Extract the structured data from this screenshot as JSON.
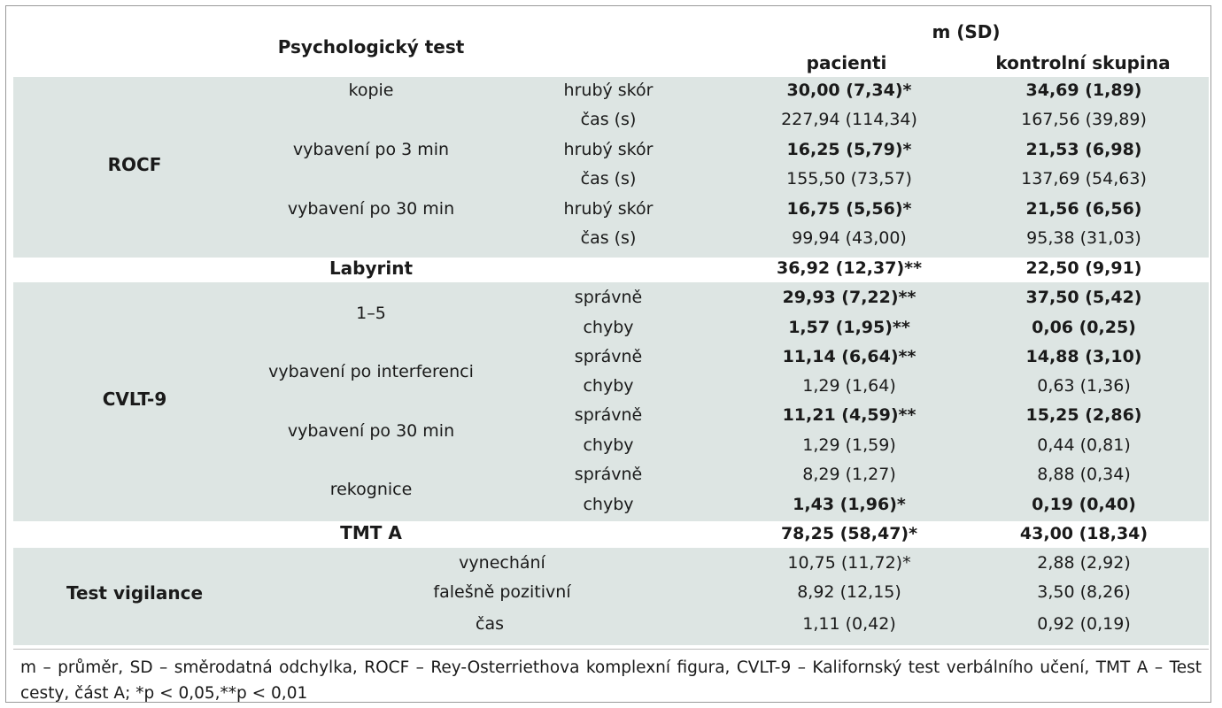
{
  "header": {
    "test": "Psychologický test",
    "stat": "m (SD)",
    "patients": "pacienti",
    "controls": "kontrolní skupina"
  },
  "groups": {
    "rocf": "ROCF",
    "labyrint": "Labyrint",
    "cvlt": "CVLT-9",
    "tmt": "TMT A",
    "vigilance": "Test vigilance"
  },
  "rows": [
    {
      "sub": "kopie",
      "measure": "hrubý skór",
      "patients": "30,00 (7,34)*",
      "controls": "34,69 (1,89)",
      "bold": true
    },
    {
      "sub": "",
      "measure": "čas (s)",
      "patients": "227,94 (114,34)",
      "controls": "167,56 (39,89)",
      "bold": false
    },
    {
      "sub": "vybavení po 3 min",
      "measure": "hrubý skór",
      "patients": "16,25 (5,79)*",
      "controls": "21,53 (6,98)",
      "bold": true
    },
    {
      "sub": "",
      "measure": "čas (s)",
      "patients": "155,50 (73,57)",
      "controls": "137,69 (54,63)",
      "bold": false
    },
    {
      "sub": "vybavení po 30 min",
      "measure": "hrubý skór",
      "patients": "16,75 (5,56)*",
      "controls": "21,56 (6,56)",
      "bold": true
    },
    {
      "sub": "",
      "measure": "čas (s)",
      "patients": "99,94 (43,00)",
      "controls": "95,38 (31,03)",
      "bold": false
    },
    {
      "sub": "",
      "measure": "",
      "patients": "36,92 (12,37)**",
      "controls": "22,50 (9,91)",
      "bold": true
    },
    {
      "sub": "1–5",
      "measure": "správně",
      "patients": "29,93 (7,22)**",
      "controls": "37,50 (5,42)",
      "bold": true
    },
    {
      "sub": "",
      "measure": "chyby",
      "patients": "1,57 (1,95)**",
      "controls": "0,06 (0,25)",
      "bold": true
    },
    {
      "sub": "vybavení po interferenci",
      "measure": "správně",
      "patients": "11,14 (6,64)**",
      "controls": "14,88 (3,10)",
      "bold": true
    },
    {
      "sub": "",
      "measure": "chyby",
      "patients": "1,29 (1,64)",
      "controls": "0,63 (1,36)",
      "bold": false
    },
    {
      "sub": "vybavení po 30 min",
      "measure": "správně",
      "patients": "11,21 (4,59)**",
      "controls": "15,25 (2,86)",
      "bold": true
    },
    {
      "sub": "",
      "measure": "chyby",
      "patients": "1,29 (1,59)",
      "controls": "0,44 (0,81)",
      "bold": false
    },
    {
      "sub": "rekognice",
      "measure": "správně",
      "patients": "8,29 (1,27)",
      "controls": "8,88 (0,34)",
      "bold": false
    },
    {
      "sub": "",
      "measure": "chyby",
      "patients": "1,43 (1,96)*",
      "controls": "0,19 (0,40)",
      "bold": true
    },
    {
      "sub": "",
      "measure": "",
      "patients": "78,25 (58,47)*",
      "controls": "43,00 (18,34)",
      "bold": true
    },
    {
      "sub": "vynechání",
      "measure": "",
      "patients": "10,75 (11,72)*",
      "controls": "2,88 (2,92)",
      "bold": false
    },
    {
      "sub": "falešně pozitivní",
      "measure": "",
      "patients": "8,92 (12,15)",
      "controls": "3,50 (8,26)",
      "bold": false
    },
    {
      "sub": "čas",
      "measure": "",
      "patients": "1,11 (0,42)",
      "controls": "0,92 (0,19)",
      "bold": false
    }
  ],
  "footnote": "m – průměr, SD – směrodatná odchylka, ROCF – Rey-Osterriethova komplexní figura, CVLT-9 – Kalifornský test verbálního učení, TMT A – Test cesty, část A; *p < 0,05,**p < 0,01",
  "colors": {
    "band": "#dde5e3",
    "border": "#9a9a9a"
  }
}
